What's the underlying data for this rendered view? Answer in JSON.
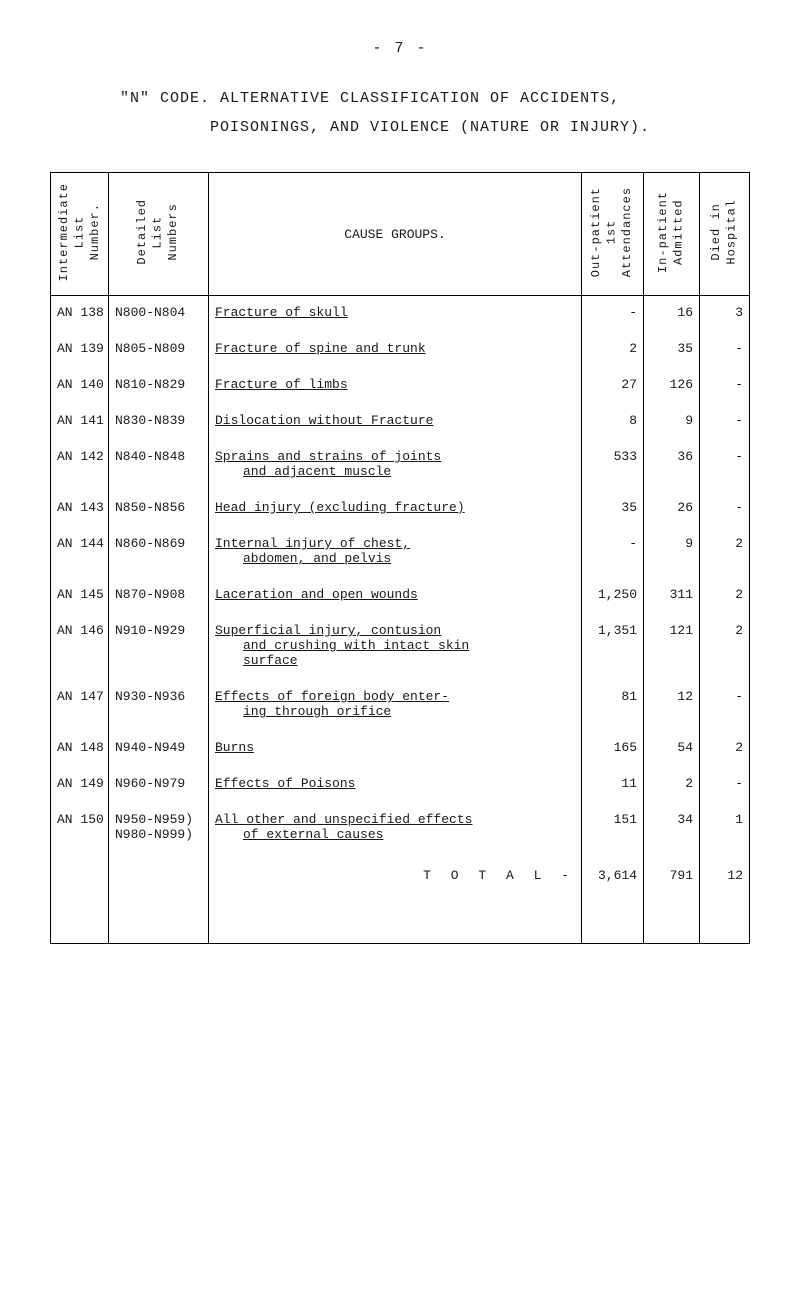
{
  "page_number_label": "- 7 -",
  "title_line_1": "\"N\" CODE.   ALTERNATIVE CLASSIFICATION OF ACCIDENTS,",
  "title_line_2": "POISONINGS, AND VIOLENCE (NATURE OR INJURY).",
  "headers": {
    "intermediate": "Intermediate\nList\nNumber.",
    "detailed": "Detailed\nList\nNumbers",
    "cause": "CAUSE GROUPS.",
    "out": "Out-patient\n1st\nAttendances",
    "in": "In-patient\nAdmitted",
    "died": "Died in\nHospital"
  },
  "rows": [
    {
      "inter": "AN 138",
      "det": "N800-N804",
      "cause_lines": [
        {
          "text": "Fracture of skull",
          "u": true
        }
      ],
      "out": "-",
      "in": "16",
      "died": "3"
    },
    {
      "inter": "AN 139",
      "det": "N805-N809",
      "cause_lines": [
        {
          "text": "Fracture of spine and trunk",
          "u": true
        }
      ],
      "out": "2",
      "in": "35",
      "died": "-"
    },
    {
      "inter": "AN 140",
      "det": "N810-N829",
      "cause_lines": [
        {
          "text": "Fracture of limbs",
          "u": true
        }
      ],
      "out": "27",
      "in": "126",
      "died": "-"
    },
    {
      "inter": "AN 141",
      "det": "N830-N839",
      "cause_lines": [
        {
          "text": "Dislocation without Fracture",
          "u": true
        }
      ],
      "out": "8",
      "in": "9",
      "died": "-"
    },
    {
      "inter": "AN 142",
      "det": "N840-N848",
      "cause_lines": [
        {
          "text": "Sprains and strains of joints",
          "u": true
        },
        {
          "text": "and adjacent muscle",
          "u": true,
          "indent": true
        }
      ],
      "out": "533",
      "in": "36",
      "died": "-"
    },
    {
      "inter": "AN 143",
      "det": "N850-N856",
      "cause_lines": [
        {
          "text": "Head injury (excluding fracture)",
          "u": true
        }
      ],
      "out": "35",
      "in": "26",
      "died": "-"
    },
    {
      "inter": "AN 144",
      "det": "N860-N869",
      "cause_lines": [
        {
          "text": "Internal injury of chest,",
          "u": true
        },
        {
          "text": "abdomen, and pelvis",
          "u": true,
          "indent": true
        }
      ],
      "out": "-",
      "in": "9",
      "died": "2"
    },
    {
      "inter": "AN 145",
      "det": "N870-N908",
      "cause_lines": [
        {
          "text": "Laceration and open wounds",
          "u": true
        }
      ],
      "out": "1,250",
      "in": "311",
      "died": "2"
    },
    {
      "inter": "AN 146",
      "det": "N910-N929",
      "cause_lines": [
        {
          "text": "Superficial injury, contusion",
          "u": true
        },
        {
          "text": "and crushing with intact skin",
          "u": true,
          "indent": true
        },
        {
          "text": "surface",
          "u": true,
          "indent": true
        }
      ],
      "out": "1,351",
      "in": "121",
      "died": "2"
    },
    {
      "inter": "AN 147",
      "det": "N930-N936",
      "cause_lines": [
        {
          "text": "Effects of foreign body enter-",
          "u": true
        },
        {
          "text": "ing through orifice",
          "u": true,
          "indent": true
        }
      ],
      "out": "81",
      "in": "12",
      "died": "-"
    },
    {
      "inter": "AN 148",
      "det": "N940-N949",
      "cause_lines": [
        {
          "text": "Burns",
          "u": true
        }
      ],
      "out": "165",
      "in": "54",
      "died": "2"
    },
    {
      "inter": "AN 149",
      "det": "N960-N979",
      "cause_lines": [
        {
          "text": "Effects of Poisons",
          "u": true
        }
      ],
      "out": "11",
      "in": "2",
      "died": "-"
    },
    {
      "inter": "AN 150",
      "det": "N950-N959)\nN980-N999)",
      "cause_lines": [
        {
          "text": "All other and unspecified effects",
          "u": true
        },
        {
          "text": "of external causes",
          "u": true,
          "indent": true
        }
      ],
      "out": "151",
      "in": "34",
      "died": "1"
    }
  ],
  "total": {
    "label": "T O T A L  -",
    "out": "3,614",
    "in": "791",
    "died": "12"
  }
}
